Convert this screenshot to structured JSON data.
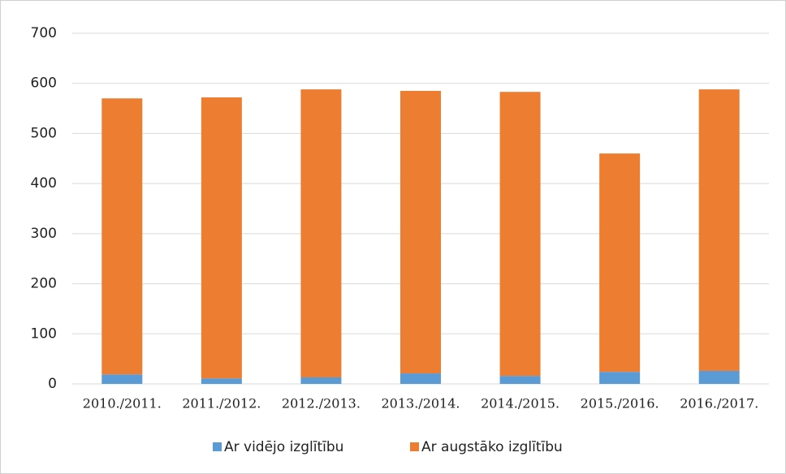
{
  "chart_data": {
    "type": "stacked_bar",
    "categories": [
      "2010./2011.",
      "2011./2012.",
      "2012./2013.",
      "2013./2014.",
      "2014./2015.",
      "2015./2016.",
      "2016./2017."
    ],
    "series": [
      {
        "name": "Ar vidējo izglītību",
        "color": "#5b9bd5",
        "values": [
          19,
          11,
          13,
          21,
          16,
          24,
          26
        ]
      },
      {
        "name": "Ar augstāko izglītību",
        "color": "#ed7d31",
        "values": [
          551,
          561,
          575,
          564,
          567,
          436,
          562
        ]
      }
    ],
    "ylim": [
      0,
      700
    ],
    "yticks": [
      0,
      100,
      200,
      300,
      400,
      500,
      600,
      700
    ],
    "grid": true,
    "legend": "bottom"
  }
}
